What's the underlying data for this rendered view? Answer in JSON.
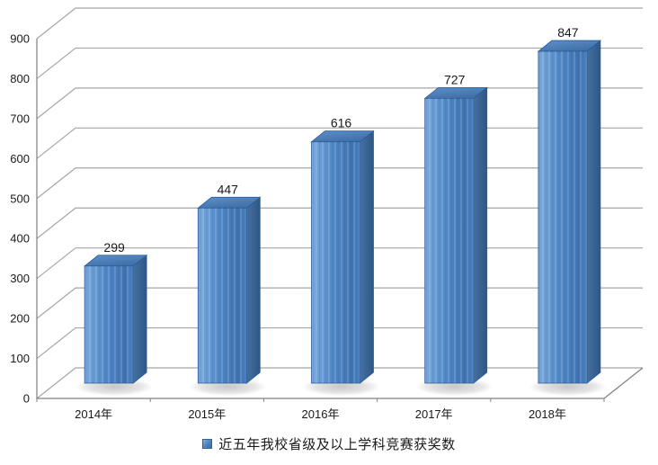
{
  "chart_data": {
    "type": "bar",
    "variant": "3d-column",
    "title": "",
    "xlabel": "",
    "ylabel": "",
    "categories": [
      "2014年",
      "2015年",
      "2016年",
      "2017年",
      "2018年"
    ],
    "values": [
      299,
      447,
      616,
      727,
      847
    ],
    "value_labels": [
      "299",
      "447",
      "616",
      "727",
      "847"
    ],
    "legend": "近五年我校省级及以上学科竞赛获奖数",
    "legend_position": "bottom",
    "grid": true,
    "ylim": [
      0,
      900
    ],
    "ytick_step": 100,
    "yticks": [
      0,
      100,
      200,
      300,
      400,
      500,
      600,
      700,
      800,
      900
    ],
    "colors": {
      "background": "#ffffff",
      "gridline": "#a6a6a6",
      "axis_line": "#808080",
      "axis_text": "#1a1a1a",
      "bar_front_light": "#79AADC",
      "bar_front_mid": "#4E86C6",
      "bar_front_dark": "#3E72B0",
      "bar_side_light": "#46719F",
      "bar_side_dark": "#2D5787",
      "bar_top_light": "#5D90CC",
      "bar_top_dark": "#416FA6",
      "bar_edge": "#2B5C9B",
      "legend_swatch": "#4F81BD",
      "shadow": "#9a9a9a"
    }
  }
}
